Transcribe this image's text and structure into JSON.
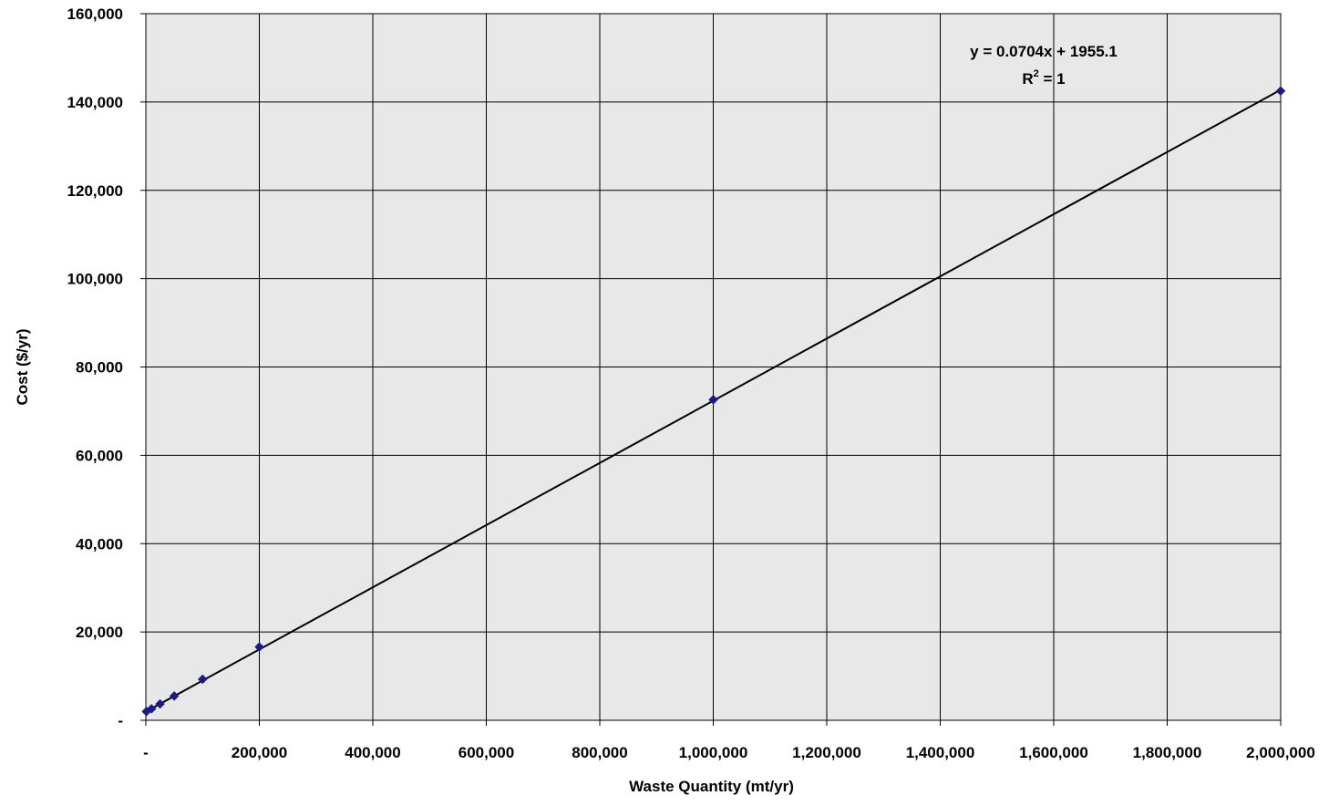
{
  "chart_data": {
    "type": "scatter",
    "title": "",
    "xlabel": "Waste Quantity (mt/yr)",
    "ylabel": "Cost ($/yr)",
    "xlim": [
      0,
      2000000
    ],
    "ylim": [
      0,
      160000
    ],
    "x_ticks": [
      0,
      200000,
      400000,
      600000,
      800000,
      1000000,
      1200000,
      1400000,
      1600000,
      1800000,
      2000000
    ],
    "x_tick_labels": [
      "-",
      "200,000",
      "400,000",
      "600,000",
      "800,000",
      "1,000,000",
      "1,200,000",
      "1,400,000",
      "1,600,000",
      "1,800,000",
      "2,000,000"
    ],
    "y_ticks": [
      0,
      20000,
      40000,
      60000,
      80000,
      100000,
      120000,
      140000,
      160000
    ],
    "y_tick_labels": [
      "-",
      "20,000",
      "40,000",
      "60,000",
      "80,000",
      "100,000",
      "120,000",
      "140,000",
      "160,000"
    ],
    "grid": true,
    "plot_background": "#e8e8e8",
    "series": [
      {
        "marker": "diamond",
        "color": "#1a1a8c",
        "x": [
          1000,
          10000,
          25000,
          50000,
          100000,
          200000,
          1000000,
          2000000
        ],
        "y": [
          2000,
          2600,
          3700,
          5500,
          9300,
          16600,
          72600,
          142500
        ]
      }
    ],
    "trendline": {
      "type": "linear",
      "slope": 0.0704,
      "intercept": 1955.1,
      "color": "#000000",
      "equation_label": "y = 0.0704x + 1955.1",
      "r2_label": "1"
    }
  }
}
